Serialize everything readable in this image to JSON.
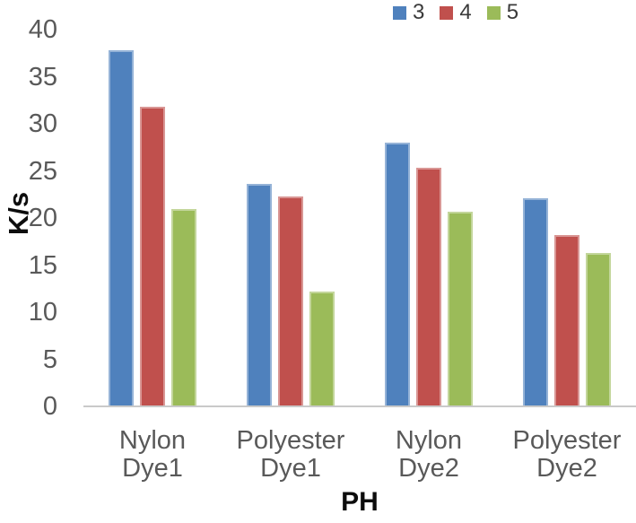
{
  "chart_data": {
    "type": "bar",
    "title": "",
    "ylabel": "K/s",
    "xlabel": "PH",
    "categories": [
      "Nylon Dye1",
      "Polyester Dye1",
      "Nylon Dye2",
      "Polyester Dye2"
    ],
    "series": [
      {
        "name": "3",
        "color": "#4F81BD",
        "edge_color": "#95B3D7",
        "values": [
          37.8,
          23.6,
          28.0,
          22.1
        ]
      },
      {
        "name": "4",
        "color": "#C0504D",
        "edge_color": "#D99694",
        "values": [
          31.8,
          22.3,
          25.3,
          18.2
        ]
      },
      {
        "name": "5",
        "color": "#9BBB59",
        "edge_color": "#C3D69B",
        "values": [
          21.0,
          12.2,
          20.7,
          16.3
        ]
      }
    ],
    "ylim": [
      0,
      40
    ],
    "yticks": [
      0,
      5,
      10,
      15,
      20,
      25,
      30,
      35,
      40
    ],
    "grid": false,
    "legend_position": "top-right",
    "axis_line_color": "#C9C9C9",
    "tick_label_color": "#595959"
  }
}
